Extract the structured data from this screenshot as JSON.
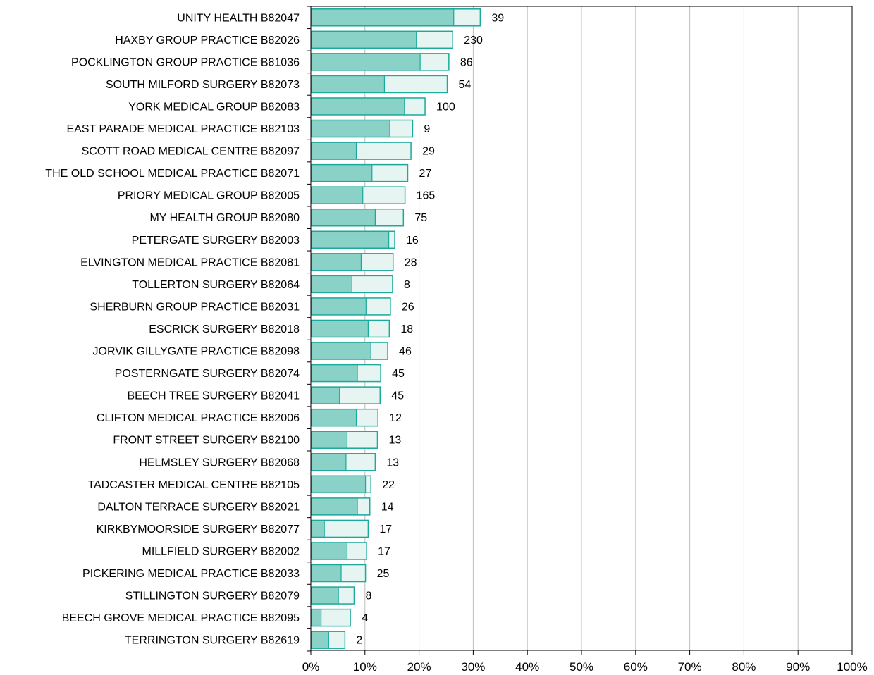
{
  "chart_data": {
    "type": "bar",
    "orientation": "horizontal",
    "stacked": true,
    "categories": [
      "UNITY HEALTH B82047",
      "HAXBY GROUP PRACTICE B82026",
      "POCKLINGTON GROUP PRACTICE B81036",
      "SOUTH MILFORD SURGERY B82073",
      "YORK MEDICAL GROUP B82083",
      "EAST PARADE MEDICAL PRACTICE B82103",
      "SCOTT ROAD MEDICAL CENTRE B82097",
      "THE OLD SCHOOL MEDICAL PRACTICE B82071",
      "PRIORY MEDICAL GROUP B82005",
      "MY HEALTH GROUP B82080",
      "PETERGATE SURGERY B82003",
      "ELVINGTON MEDICAL PRACTICE B82081",
      "TOLLERTON SURGERY B82064",
      "SHERBURN GROUP PRACTICE B82031",
      "ESCRICK SURGERY B82018",
      "JORVIK GILLYGATE PRACTICE B82098",
      "POSTERNGATE SURGERY B82074",
      "BEECH TREE SURGERY B82041",
      "CLIFTON MEDICAL PRACTICE B82006",
      "FRONT STREET SURGERY B82100",
      "HELMSLEY SURGERY B82068",
      "TADCASTER MEDICAL CENTRE B82105",
      "DALTON TERRACE SURGERY B82021",
      "KIRKBYMOORSIDE SURGERY B82077",
      "MILLFIELD SURGERY B82002",
      "PICKERING MEDICAL PRACTICE B82033",
      "STILLINGTON SURGERY B82079",
      "BEECH GROVE MEDICAL PRACTICE B82095",
      "TERRINGTON SURGERY B82619"
    ],
    "series": [
      {
        "values": [
          26.4,
          19.5,
          20.2,
          13.6,
          17.3,
          14.6,
          8.4,
          11.3,
          9.6,
          11.9,
          14.4,
          9.3,
          7.6,
          10.2,
          10.6,
          11.1,
          8.6,
          5.3,
          8.4,
          6.7,
          6.5,
          10.1,
          8.6,
          2.5,
          6.7,
          5.6,
          5.1,
          1.9,
          3.3
        ]
      },
      {
        "values": [
          4.9,
          6.7,
          5.3,
          11.6,
          3.8,
          4.2,
          10.1,
          6.6,
          7.8,
          5.2,
          1.1,
          5.9,
          7.5,
          4.5,
          3.9,
          3.1,
          4.3,
          7.5,
          4.0,
          5.6,
          5.4,
          1.0,
          2.3,
          8.1,
          3.6,
          4.5,
          2.9,
          5.4,
          3.0
        ]
      }
    ],
    "data_labels": [
      "39",
      "230",
      "86",
      "54",
      "100",
      "9",
      "29",
      "27",
      "165",
      "75",
      "16",
      "28",
      "8",
      "26",
      "18",
      "46",
      "45",
      "45",
      "12",
      "13",
      "13",
      "22",
      "14",
      "17",
      "17",
      "25",
      "8",
      "4",
      "2"
    ],
    "x_ticks": [
      "0%",
      "10%",
      "20%",
      "30%",
      "40%",
      "50%",
      "60%",
      "70%",
      "80%",
      "90%",
      "100%"
    ],
    "xlim": [
      0,
      100
    ],
    "title": "",
    "xlabel": "",
    "ylabel": "",
    "grid": "vertical",
    "legend": "none",
    "colors": {
      "series1_fill": "#8ad1c8",
      "series2_fill": "#e6f5f2",
      "bar_stroke": "#1aa99a",
      "grid": "#bdbdbd",
      "axis": "#000000"
    }
  }
}
